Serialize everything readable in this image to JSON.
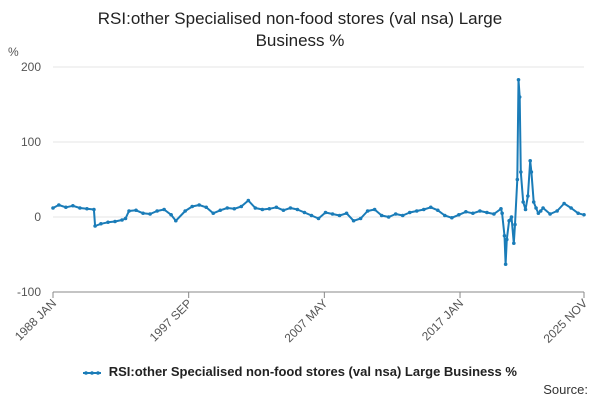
{
  "title_line1": "RSI:other Specialised non-food stores (val nsa) Large",
  "title_line2": "Business %",
  "source": "Source:",
  "colors": {
    "series": "#1a7cb8",
    "grid": "#e6e6e6",
    "axis": "#888888",
    "text": "#555555"
  },
  "chart_data": {
    "type": "line",
    "title": "RSI:other Specialised non-food stores (val nsa) Large Business %",
    "ylabel": "%",
    "xlabel": "",
    "ylim": [
      -100,
      200
    ],
    "y_ticks": [
      -100,
      0,
      100,
      200
    ],
    "x_ticks": [
      "1988 JAN",
      "1997 SEP",
      "2007 MAY",
      "2017 JAN",
      "2025 NOV"
    ],
    "x_range": [
      "1988 JAN",
      "2025 NOV"
    ],
    "grid": "horizontal",
    "legend_placement": "bottom",
    "series": [
      {
        "name": "RSI:other Specialised non-food stores (val nsa) Large Business %",
        "points": [
          [
            "1988 JAN",
            12
          ],
          [
            "1988 JUN",
            16
          ],
          [
            "1988 DEC",
            13
          ],
          [
            "1989 JUN",
            15
          ],
          [
            "1989 DEC",
            12
          ],
          [
            "1990 JUN",
            11
          ],
          [
            "1990 DEC",
            10
          ],
          [
            "1991 JAN",
            -12
          ],
          [
            "1991 JUN",
            -9
          ],
          [
            "1991 DEC",
            -7
          ],
          [
            "1992 JUN",
            -6
          ],
          [
            "1992 DEC",
            -4
          ],
          [
            "1993 MAR",
            -2
          ],
          [
            "1993 JUN",
            8
          ],
          [
            "1993 DEC",
            9
          ],
          [
            "1994 JUN",
            5
          ],
          [
            "1994 DEC",
            4
          ],
          [
            "1995 JUN",
            8
          ],
          [
            "1995 DEC",
            10
          ],
          [
            "1996 JUN",
            3
          ],
          [
            "1996 OCT",
            -5
          ],
          [
            "1997 JUN",
            8
          ],
          [
            "1997 DEC",
            14
          ],
          [
            "1998 JUN",
            16
          ],
          [
            "1998 DEC",
            13
          ],
          [
            "1999 JUN",
            5
          ],
          [
            "1999 DEC",
            9
          ],
          [
            "2000 JUN",
            12
          ],
          [
            "2000 DEC",
            11
          ],
          [
            "2001 JUN",
            14
          ],
          [
            "2001 DEC",
            22
          ],
          [
            "2002 JUN",
            12
          ],
          [
            "2002 DEC",
            10
          ],
          [
            "2003 JUN",
            11
          ],
          [
            "2003 DEC",
            13
          ],
          [
            "2004 JUN",
            9
          ],
          [
            "2004 DEC",
            12
          ],
          [
            "2005 JUN",
            10
          ],
          [
            "2005 DEC",
            6
          ],
          [
            "2006 JUN",
            2
          ],
          [
            "2006 DEC",
            -2
          ],
          [
            "2007 JUN",
            6
          ],
          [
            "2007 DEC",
            4
          ],
          [
            "2008 JUN",
            2
          ],
          [
            "2008 DEC",
            5
          ],
          [
            "2009 JUN",
            -5
          ],
          [
            "2009 DEC",
            -2
          ],
          [
            "2010 JUN",
            8
          ],
          [
            "2010 DEC",
            10
          ],
          [
            "2011 JUN",
            2
          ],
          [
            "2011 DEC",
            0
          ],
          [
            "2012 JUN",
            4
          ],
          [
            "2012 DEC",
            2
          ],
          [
            "2013 JUN",
            6
          ],
          [
            "2013 DEC",
            8
          ],
          [
            "2014 JUN",
            10
          ],
          [
            "2014 DEC",
            13
          ],
          [
            "2015 JUN",
            9
          ],
          [
            "2015 DEC",
            2
          ],
          [
            "2016 JUN",
            -1
          ],
          [
            "2016 DEC",
            3
          ],
          [
            "2017 JUN",
            7
          ],
          [
            "2017 DEC",
            5
          ],
          [
            "2018 JUN",
            8
          ],
          [
            "2018 DEC",
            6
          ],
          [
            "2019 JUN",
            4
          ],
          [
            "2019 DEC",
            11
          ],
          [
            "2020 JAN",
            5
          ],
          [
            "2020 MAR",
            -25
          ],
          [
            "2020 APR",
            -63
          ],
          [
            "2020 MAY",
            -30
          ],
          [
            "2020 JUL",
            -5
          ],
          [
            "2020 SEP",
            0
          ],
          [
            "2020 NOV",
            -35
          ],
          [
            "2020 DEC",
            -10
          ],
          [
            "2021 FEB",
            50
          ],
          [
            "2021 MAR",
            183
          ],
          [
            "2021 APR",
            160
          ],
          [
            "2021 MAY",
            60
          ],
          [
            "2021 JUL",
            20
          ],
          [
            "2021 SEP",
            10
          ],
          [
            "2021 NOV",
            28
          ],
          [
            "2022 JAN",
            75
          ],
          [
            "2022 FEB",
            60
          ],
          [
            "2022 APR",
            20
          ],
          [
            "2022 JUN",
            12
          ],
          [
            "2022 AUG",
            5
          ],
          [
            "2022 OCT",
            8
          ],
          [
            "2022 DEC",
            12
          ],
          [
            "2023 JUN",
            4
          ],
          [
            "2023 DEC",
            8
          ],
          [
            "2024 JUN",
            18
          ],
          [
            "2024 DEC",
            12
          ],
          [
            "2025 JUN",
            5
          ],
          [
            "2025 NOV",
            3
          ]
        ]
      }
    ]
  }
}
